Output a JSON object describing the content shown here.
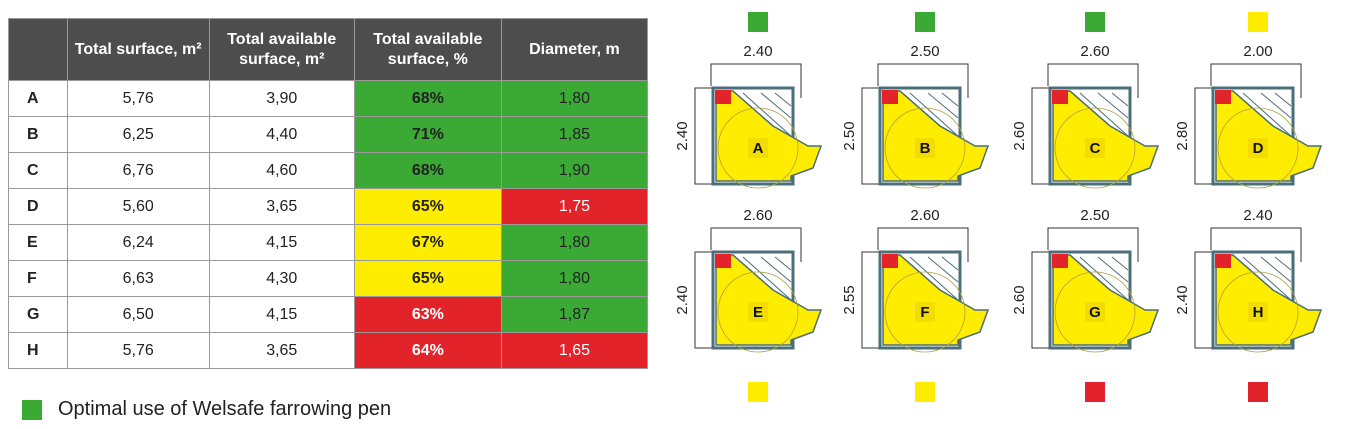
{
  "table": {
    "header_color": "#4d4d4d",
    "headers": [
      "Total surface, m²",
      "Total available surface, m²",
      "Total available surface, %",
      "Diameter, m"
    ],
    "rows": [
      {
        "cells": [
          "A",
          "5,76",
          "3,90",
          "68%",
          "1,80"
        ],
        "percent_color": "#3aaa35",
        "diameter_color": "#3aaa35"
      },
      {
        "cells": [
          "B",
          "6,25",
          "4,40",
          "71%",
          "1,85"
        ],
        "percent_color": "#3aaa35",
        "diameter_color": "#3aaa35"
      },
      {
        "cells": [
          "C",
          "6,76",
          "4,60",
          "68%",
          "1,90"
        ],
        "percent_color": "#3aaa35",
        "diameter_color": "#3aaa35"
      },
      {
        "cells": [
          "D",
          "5,60",
          "3,65",
          "65%",
          "1,75"
        ],
        "percent_color": "#ffed00",
        "diameter_color": "#e3232a"
      },
      {
        "cells": [
          "E",
          "6,24",
          "4,15",
          "67%",
          "1,80"
        ],
        "percent_color": "#ffed00",
        "diameter_color": "#3aaa35"
      },
      {
        "cells": [
          "F",
          "6,63",
          "4,30",
          "65%",
          "1,80"
        ],
        "percent_color": "#ffed00",
        "diameter_color": "#3aaa35"
      },
      {
        "cells": [
          "G",
          "6,50",
          "4,15",
          "63%",
          "1,87"
        ],
        "percent_color": "#e3232a",
        "diameter_color": "#3aaa35"
      },
      {
        "cells": [
          "H",
          "5,76",
          "3,65",
          "64%",
          "1,65"
        ],
        "percent_color": "#e3232a",
        "diameter_color": "#e3232a"
      }
    ]
  },
  "legend": {
    "label": "Optimal use of Welsafe farrowing pen",
    "color": "#3aaa35"
  },
  "pens": [
    {
      "label": "A",
      "width": "2.40",
      "depth": "2.40",
      "status_color": "#3aaa35"
    },
    {
      "label": "B",
      "width": "2.50",
      "depth": "2.50",
      "status_color": "#3aaa35"
    },
    {
      "label": "C",
      "width": "2.60",
      "depth": "2.60",
      "status_color": "#3aaa35"
    },
    {
      "label": "D",
      "width": "2.00",
      "depth": "2.80",
      "status_color": "#ffed00"
    },
    {
      "label": "E",
      "width": "2.60",
      "depth": "2.40",
      "status_color": "#ffed00"
    },
    {
      "label": "F",
      "width": "2.60",
      "depth": "2.55",
      "status_color": "#ffed00"
    },
    {
      "label": "G",
      "width": "2.50",
      "depth": "2.60",
      "status_color": "#e3232a"
    },
    {
      "label": "H",
      "width": "2.40",
      "depth": "2.40",
      "status_color": "#e3232a"
    }
  ]
}
